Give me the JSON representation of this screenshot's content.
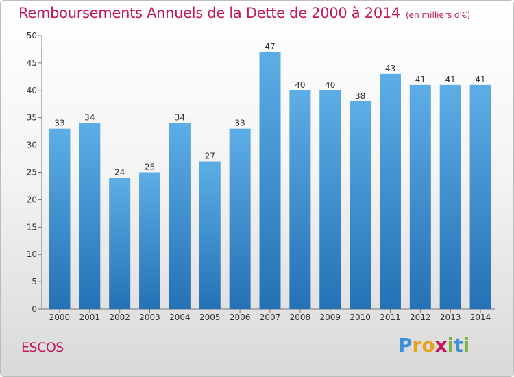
{
  "header": {
    "title": "Remboursements Annuels de la Dette de 2000 à 2014",
    "unit": "(en milliers d'€)"
  },
  "footer": {
    "place": "ESCOS",
    "logo": [
      "P",
      "r",
      "o",
      "x",
      "i",
      "t",
      "i"
    ],
    "logo_colors": [
      "#3d8fd6",
      "#e8a21a",
      "#e8a21a",
      "#c2185b",
      "#7cb342",
      "#3d8fd6",
      "#7cb342"
    ]
  },
  "chart_data": {
    "type": "bar",
    "categories": [
      "2000",
      "2001",
      "2002",
      "2003",
      "2004",
      "2005",
      "2006",
      "2007",
      "2008",
      "2009",
      "2010",
      "2011",
      "2012",
      "2013",
      "2014"
    ],
    "values": [
      33,
      34,
      24,
      25,
      34,
      27,
      33,
      47,
      40,
      40,
      38,
      43,
      41,
      41,
      41
    ],
    "ylim": [
      0,
      50
    ],
    "yticks": [
      0,
      5,
      10,
      15,
      20,
      25,
      30,
      35,
      40,
      45,
      50
    ],
    "grid": false,
    "colors": {
      "bar_top": "#5dade6",
      "bar_bottom": "#2471b5",
      "axis": "#777777"
    }
  }
}
